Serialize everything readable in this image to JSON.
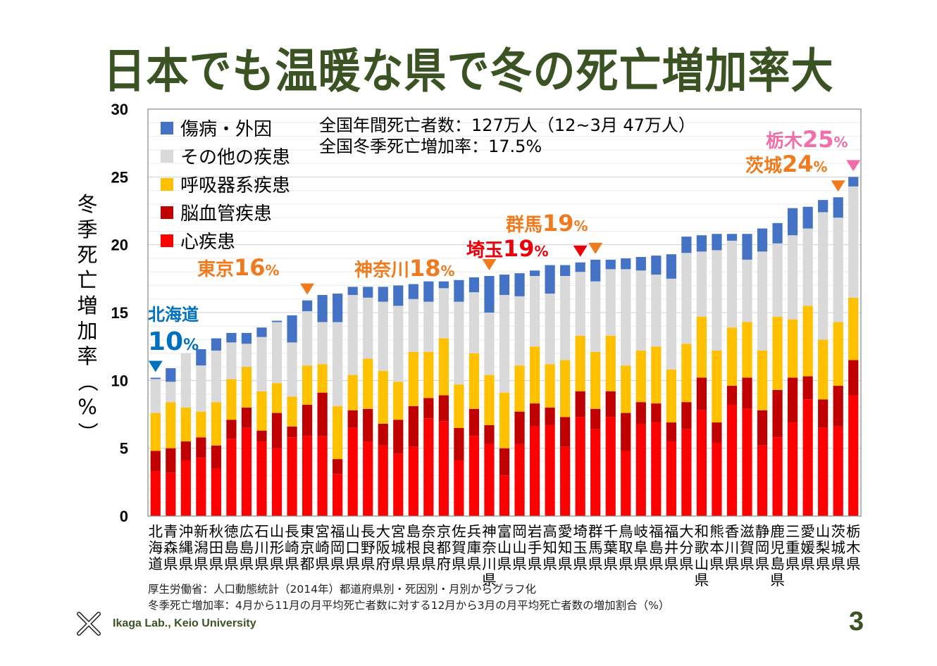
{
  "slide": {
    "title": "日本でも温暖な県で冬の死亡増加率大",
    "source_line1": "厚生労働省：人口動態統計（2014年）都道府県別・死因別・月別からグラフ化",
    "source_line2": "冬季死亡増加率：4月から11月の月平均死亡者数に対する12月から3月の月平均死亡者数の増加割合（%）",
    "footer_lab": "Ikaga Lab., Keio University",
    "page_number": "3"
  },
  "chart_data": {
    "type": "bar",
    "stacked": true,
    "title": "日本でも温暖な県で冬の死亡増加率大",
    "xlabel": "",
    "ylabel": "冬季死亡増加率（%）",
    "ylim": [
      0,
      30
    ],
    "yticks": [
      0,
      5,
      10,
      15,
      20,
      25,
      30
    ],
    "grid": true,
    "legend_position": "top-left",
    "categories": [
      "北海道",
      "青森県",
      "沖縄県",
      "新潟県",
      "秋田県",
      "徳島県",
      "広島県",
      "石川県",
      "山形県",
      "長崎県",
      "東京都",
      "宮崎県",
      "福岡県",
      "山口県",
      "長野県",
      "大阪府",
      "宮城県",
      "島根県",
      "奈良県",
      "京都府",
      "佐賀県",
      "兵庫県",
      "神奈川県",
      "富山県",
      "岡山県",
      "岩手県",
      "高知県",
      "愛知県",
      "埼玉県",
      "群馬県",
      "千葉県",
      "鳥取県",
      "岐阜県",
      "福島県",
      "福井県",
      "大分県",
      "和歌山県",
      "熊本県",
      "香川県",
      "滋賀県",
      "静岡県",
      "鹿児島県",
      "三重県",
      "愛媛県",
      "山梨県",
      "茨城県",
      "栃木県"
    ],
    "series": [
      {
        "name": "心疾患",
        "color": "#ff0000",
        "values": [
          3.3,
          3.2,
          4.1,
          4.3,
          3.5,
          5.7,
          6.5,
          5.5,
          5.0,
          5.8,
          5.9,
          5.9,
          3.1,
          6.5,
          5.5,
          5.2,
          4.6,
          5.1,
          7.2,
          7.0,
          4.1,
          5.9,
          5.3,
          3.0,
          5.3,
          6.6,
          6.7,
          5.1,
          7.3,
          6.4,
          7.3,
          4.8,
          6.8,
          6.9,
          5.5,
          6.4,
          7.8,
          5.4,
          8.2,
          7.9,
          5.2,
          5.8,
          6.9,
          8.6,
          6.5,
          6.6,
          8.9
        ]
      },
      {
        "name": "脳血管疾患",
        "color": "#c00000",
        "values": [
          1.5,
          1.8,
          1.4,
          1.5,
          1.7,
          1.4,
          1.5,
          0.8,
          2.6,
          0.8,
          2.3,
          3.2,
          1.1,
          1.3,
          2.4,
          1.6,
          2.5,
          3.0,
          1.5,
          1.9,
          2.4,
          2.0,
          1.4,
          2.0,
          2.4,
          1.7,
          1.3,
          2.2,
          1.9,
          1.5,
          1.9,
          2.8,
          1.6,
          1.4,
          1.4,
          2.0,
          2.4,
          1.5,
          1.4,
          2.3,
          2.6,
          3.5,
          3.3,
          1.7,
          2.1,
          3.0,
          2.6
        ]
      },
      {
        "name": "呼吸器系疾患",
        "color": "#ffc000",
        "values": [
          2.8,
          3.4,
          2.5,
          1.9,
          3.2,
          3.0,
          3.0,
          2.9,
          2.2,
          2.2,
          2.9,
          2.1,
          3.9,
          2.6,
          3.7,
          3.9,
          2.8,
          4.0,
          3.4,
          4.2,
          3.2,
          4.1,
          3.7,
          4.1,
          3.4,
          4.2,
          3.2,
          4.2,
          4.1,
          4.2,
          4.1,
          3.5,
          3.8,
          4.2,
          3.9,
          4.3,
          4.5,
          5.3,
          4.3,
          4.1,
          4.4,
          5.4,
          4.3,
          5.2,
          4.4,
          4.7,
          4.6
        ]
      },
      {
        "name": "その他の疾患",
        "color": "#d9d9d9",
        "values": [
          2.5,
          1.5,
          4.0,
          3.4,
          3.8,
          2.7,
          1.7,
          4.0,
          4.5,
          4.0,
          4.0,
          3.1,
          6.2,
          5.9,
          4.5,
          5.1,
          5.6,
          3.9,
          3.7,
          3.7,
          6.1,
          4.5,
          4.6,
          7.2,
          5.1,
          5.2,
          5.2,
          6.2,
          4.7,
          5.2,
          4.9,
          7.1,
          5.9,
          5.3,
          6.7,
          6.7,
          4.8,
          7.4,
          6.4,
          4.6,
          7.3,
          5.4,
          6.2,
          5.7,
          9.4,
          7.7,
          8.2
        ]
      },
      {
        "name": "傷病・外因",
        "color": "#4472c4",
        "values": [
          0.1,
          1.0,
          0.0,
          1.2,
          0.9,
          0.7,
          0.8,
          0.7,
          0.1,
          2.0,
          0.8,
          2.0,
          2.1,
          0.6,
          0.8,
          1.1,
          1.5,
          1.1,
          1.5,
          0.5,
          1.6,
          1.1,
          2.7,
          1.5,
          1.7,
          0.4,
          2.1,
          0.8,
          0.7,
          1.6,
          0.7,
          0.8,
          1.0,
          1.4,
          1.8,
          1.2,
          1.2,
          1.2,
          0.5,
          1.9,
          1.7,
          1.5,
          2.0,
          1.6,
          0.9,
          1.5,
          0.7
        ]
      }
    ],
    "legend_order": [
      "傷病・外因",
      "その他の疾患",
      "呼吸器系疾患",
      "脳血管疾患",
      "心疾患"
    ],
    "annotations_text": {
      "line1": "全国年間死亡者数：127万人（12~3月 47万人）",
      "line2": "全国冬季死亡増加率：17.5%"
    },
    "callouts": [
      {
        "category": "北海道",
        "name": "北海道",
        "value": "10",
        "unit": "%",
        "color": "#0070c0",
        "marker_color": "#0070c0"
      },
      {
        "category": "東京都",
        "name": "東京",
        "value": "16",
        "unit": "%",
        "color": "#f07b1e",
        "marker_color": "#f07b1e"
      },
      {
        "category": "神奈川県",
        "name": "神奈川",
        "value": "18",
        "unit": "%",
        "color": "#f07b1e",
        "marker_color": "#f07b1e"
      },
      {
        "category": "埼玉県",
        "name": "埼玉",
        "value": "19",
        "unit": "%",
        "color": "#e8000b",
        "marker_color": "#e8000b"
      },
      {
        "category": "群馬県",
        "name": "群馬",
        "value": "19",
        "unit": "%",
        "color": "#f07b1e",
        "marker_color": "#f07b1e"
      },
      {
        "category": "茨城県",
        "name": "茨城",
        "value": "24",
        "unit": "%",
        "color": "#f07b1e",
        "marker_color": "#f07b1e"
      },
      {
        "category": "栃木県",
        "name": "栃木",
        "value": "25",
        "unit": "%",
        "color": "#f06ea9",
        "marker_color": "#f06ea9"
      }
    ]
  }
}
